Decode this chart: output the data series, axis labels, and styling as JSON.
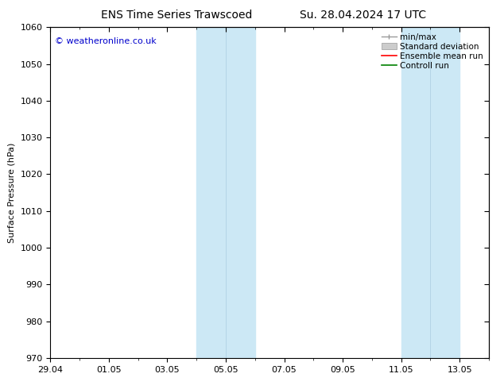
{
  "title_left": "ENS Time Series Trawscoed",
  "title_right": "Su. 28.04.2024 17 UTC",
  "ylabel": "Surface Pressure (hPa)",
  "ylim": [
    970,
    1060
  ],
  "yticks": [
    970,
    980,
    990,
    1000,
    1010,
    1020,
    1030,
    1040,
    1050,
    1060
  ],
  "xtick_labels": [
    "29.04",
    "01.05",
    "03.05",
    "05.05",
    "07.05",
    "09.05",
    "11.05",
    "13.05"
  ],
  "xtick_positions": [
    0,
    2,
    4,
    6,
    8,
    10,
    12,
    14
  ],
  "xlim": [
    0,
    15
  ],
  "background_color": "#ffffff",
  "plot_bg_color": "#ffffff",
  "shade_color": "#cce8f5",
  "shaded_bands": [
    {
      "x_start": 4.5,
      "x_end": 5.0
    },
    {
      "x_start": 5.0,
      "x_end": 5.5
    },
    {
      "x_start": 11.5,
      "x_end": 12.0
    },
    {
      "x_start": 12.0,
      "x_end": 12.5
    }
  ],
  "watermark_text": "© weatheronline.co.uk",
  "watermark_color": "#0000cc",
  "legend_labels": [
    "min/max",
    "Standard deviation",
    "Ensemble mean run",
    "Controll run"
  ],
  "legend_colors": [
    "#999999",
    "#cccccc",
    "#ff0000",
    "#008000"
  ],
  "font_size_title": 10,
  "font_size_axis": 8,
  "font_size_legend": 7.5,
  "font_size_watermark": 8,
  "tick_color": "#000000",
  "spine_color": "#000000"
}
